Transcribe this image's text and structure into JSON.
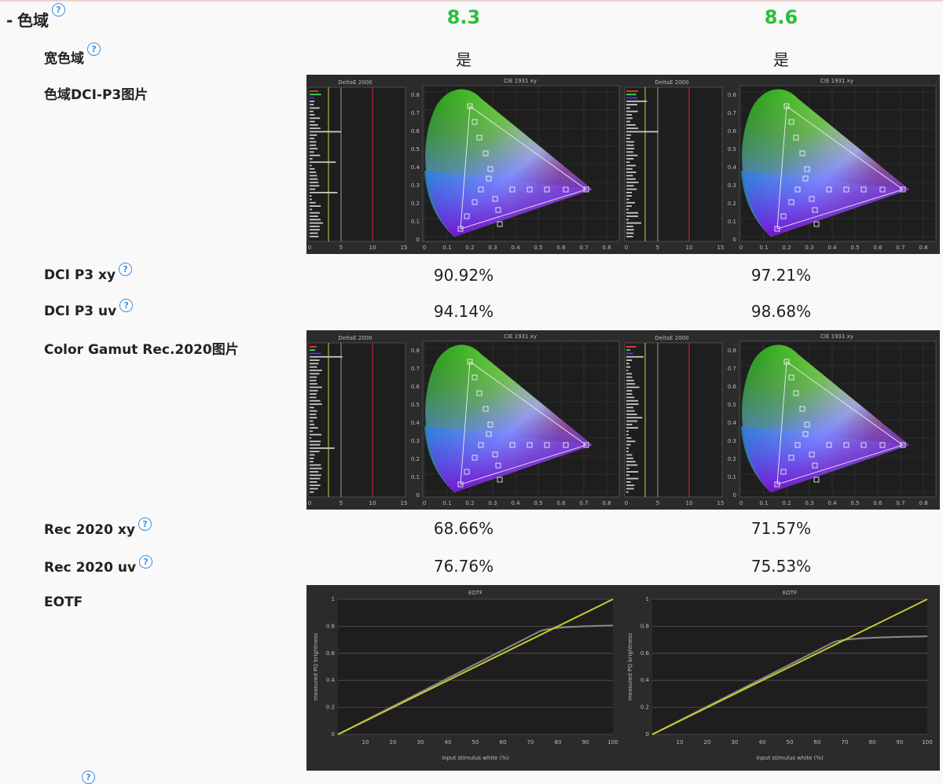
{
  "section": {
    "title": "色域",
    "collapse_glyph": "-"
  },
  "scores": {
    "left": "8.3",
    "right": "8.6"
  },
  "rows": {
    "wide_gamut": {
      "label": "宽色域",
      "left": "是",
      "right": "是"
    },
    "dci_image": {
      "label": "色域DCI-P3图片"
    },
    "dci_xy": {
      "label": "DCI P3 xy",
      "left": "90.92%",
      "right": "97.21%"
    },
    "dci_uv": {
      "label": "DCI P3 uv",
      "left": "94.14%",
      "right": "98.68%"
    },
    "rec_image": {
      "label": "Color Gamut Rec.2020图片"
    },
    "rec_xy": {
      "label": "Rec 2020 xy",
      "left": "68.66%",
      "right": "71.57%"
    },
    "rec_uv": {
      "label": "Rec 2020 uv",
      "left": "76.76%",
      "right": "75.53%"
    },
    "eotf": {
      "label": "EOTF"
    }
  },
  "help_glyph": "?",
  "chart_text": {
    "deltae_title": "DeltaE 2000",
    "cie_title": "CIE 1931 xy",
    "eotf_title": "EOTF",
    "eotf_ylabel": "measured PQ brightness",
    "eotf_xlabel": "input stimulus white (%)",
    "deltae_ticks": [
      "0",
      "5",
      "10",
      "15"
    ],
    "cie_ticks": [
      "0",
      "0.1",
      "0.2",
      "0.3",
      "0.4",
      "0.5",
      "0.6",
      "0.7",
      "0.8"
    ],
    "eotf_x_ticks": [
      "10",
      "20",
      "30",
      "40",
      "50",
      "60",
      "70",
      "80",
      "90",
      "100"
    ],
    "eotf_y_ticks": [
      "0",
      "0.2",
      "0.4",
      "0.6",
      "0.8",
      "1"
    ]
  },
  "colors": {
    "score": "#2bbf3a",
    "help": "#3c8ee0",
    "panel": "#2b2b2b",
    "target_line": "#c8c832",
    "measured_line": "#8a8a8a"
  }
}
